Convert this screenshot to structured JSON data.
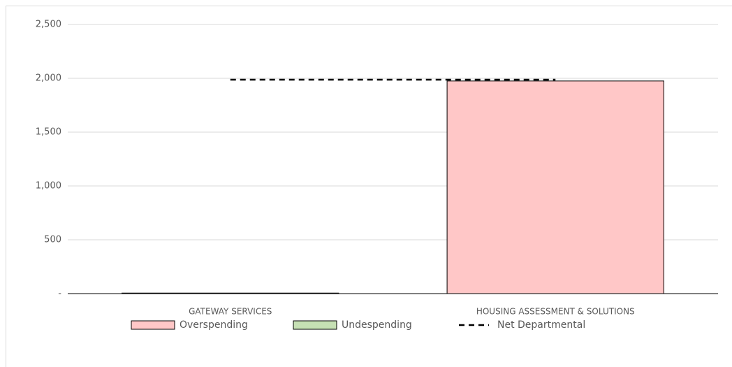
{
  "chart_data": {
    "type": "bar",
    "categories": [
      "GATEWAY SERVICES",
      "HOUSING ASSESSMENT & SOLUTIONS"
    ],
    "series": [
      {
        "name": "Overspending",
        "type": "bar",
        "color": "#ffc7c7",
        "values": [
          5,
          1975
        ]
      },
      {
        "name": "Undespending",
        "type": "bar",
        "color": "#c6e0b4",
        "values": [
          0,
          0
        ]
      },
      {
        "name": "Net Departmental",
        "type": "line",
        "color": "#000000",
        "dashed": true,
        "values": [
          1987,
          1987
        ]
      }
    ],
    "ylim": [
      0,
      2500
    ],
    "yticks": [
      {
        "value": 0,
        "label": "-"
      },
      500,
      {
        "value": 1000,
        "label": "1,000"
      },
      {
        "value": 1500,
        "label": "1,500"
      },
      {
        "value": 2000,
        "label": "2,000"
      },
      {
        "value": 2500,
        "label": "2,500"
      }
    ],
    "grid": true,
    "legend": "bottom"
  }
}
